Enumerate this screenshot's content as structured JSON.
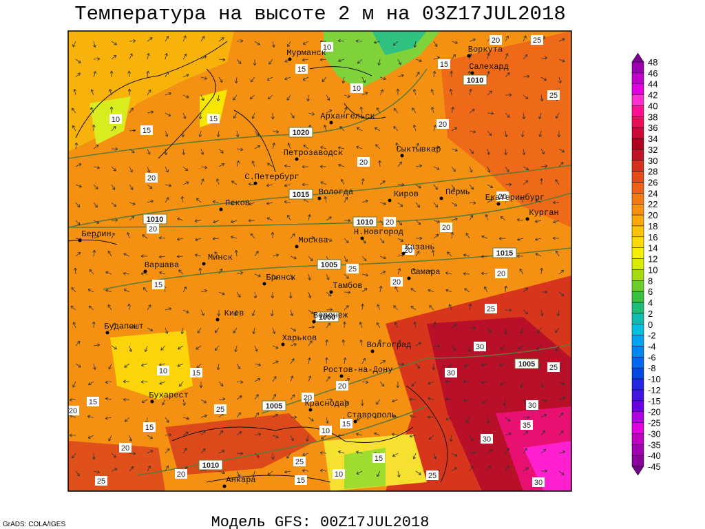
{
  "title": "Температура на высоте 2 м на 03Z17JUL2018",
  "footer": "Модель GFS: 00Z17JUL2018",
  "credit": "GrADS: COLA/IGES",
  "cities": [
    "Мурманск",
    "Воркута",
    "Салехард",
    "Архангельск",
    "Сыктывкар",
    "Петрозаводск",
    "С.Петербург",
    "Вологда",
    "Киров",
    "Пермь",
    "Екатеринбург",
    "Курган",
    "Псков",
    "Берлин",
    "Н.Новгород",
    "Москва",
    "Казань",
    "Варшава",
    "Минск",
    "Самара",
    "Брянск",
    "Тамбов",
    "Киев",
    "Воронеж",
    "Будапешт",
    "Харьков",
    "Волгоград",
    "Ростов-на-Дону",
    "Бухарест",
    "Краснодар",
    "Ставрополь",
    "Анкара"
  ],
  "isobar_labels": [
    1020,
    1015,
    1010,
    1010,
    1005,
    1000,
    1005,
    1010,
    1015,
    1005,
    1010
  ],
  "temperature_labels": [
    10,
    20,
    25,
    15,
    25,
    10,
    15,
    15,
    15,
    10,
    20,
    20,
    20,
    20,
    20,
    20,
    20,
    25,
    20,
    20,
    20,
    15,
    25,
    30,
    25,
    10,
    15,
    15,
    20,
    15,
    25,
    20,
    20,
    15,
    10,
    30,
    30,
    30,
    35,
    20,
    25,
    15,
    10,
    15,
    20,
    25,
    25,
    30
  ],
  "colorbar": {
    "labels": [
      48,
      46,
      44,
      42,
      40,
      38,
      36,
      34,
      32,
      30,
      28,
      26,
      24,
      22,
      20,
      18,
      16,
      14,
      12,
      10,
      8,
      6,
      4,
      2,
      0,
      -2,
      -4,
      -6,
      -8,
      -10,
      -12,
      -15,
      -20,
      -25,
      -30,
      -35,
      -40,
      -45
    ],
    "colors": [
      "#7a0090",
      "#9a00b0",
      "#c000c8",
      "#e000e0",
      "#ff30d0",
      "#ff1090",
      "#e8105a",
      "#cc0838",
      "#b00020",
      "#c01426",
      "#d4301e",
      "#e44a1a",
      "#ee6218",
      "#f47a14",
      "#f8920e",
      "#fbaa0a",
      "#fcc406",
      "#fcdc08",
      "#f6ee00",
      "#d8ec00",
      "#a4dc10",
      "#6cce28",
      "#3cc040",
      "#20bc78",
      "#10bcb0",
      "#00c0e0",
      "#00a4f0",
      "#0088f0",
      "#0068ec",
      "#0048e0",
      "#2428e0",
      "#4414e0",
      "#6800e0",
      "#b000e0",
      "#e000e0",
      "#c000c0",
      "#a000b0",
      "#8c009c",
      "#700088"
    ]
  }
}
